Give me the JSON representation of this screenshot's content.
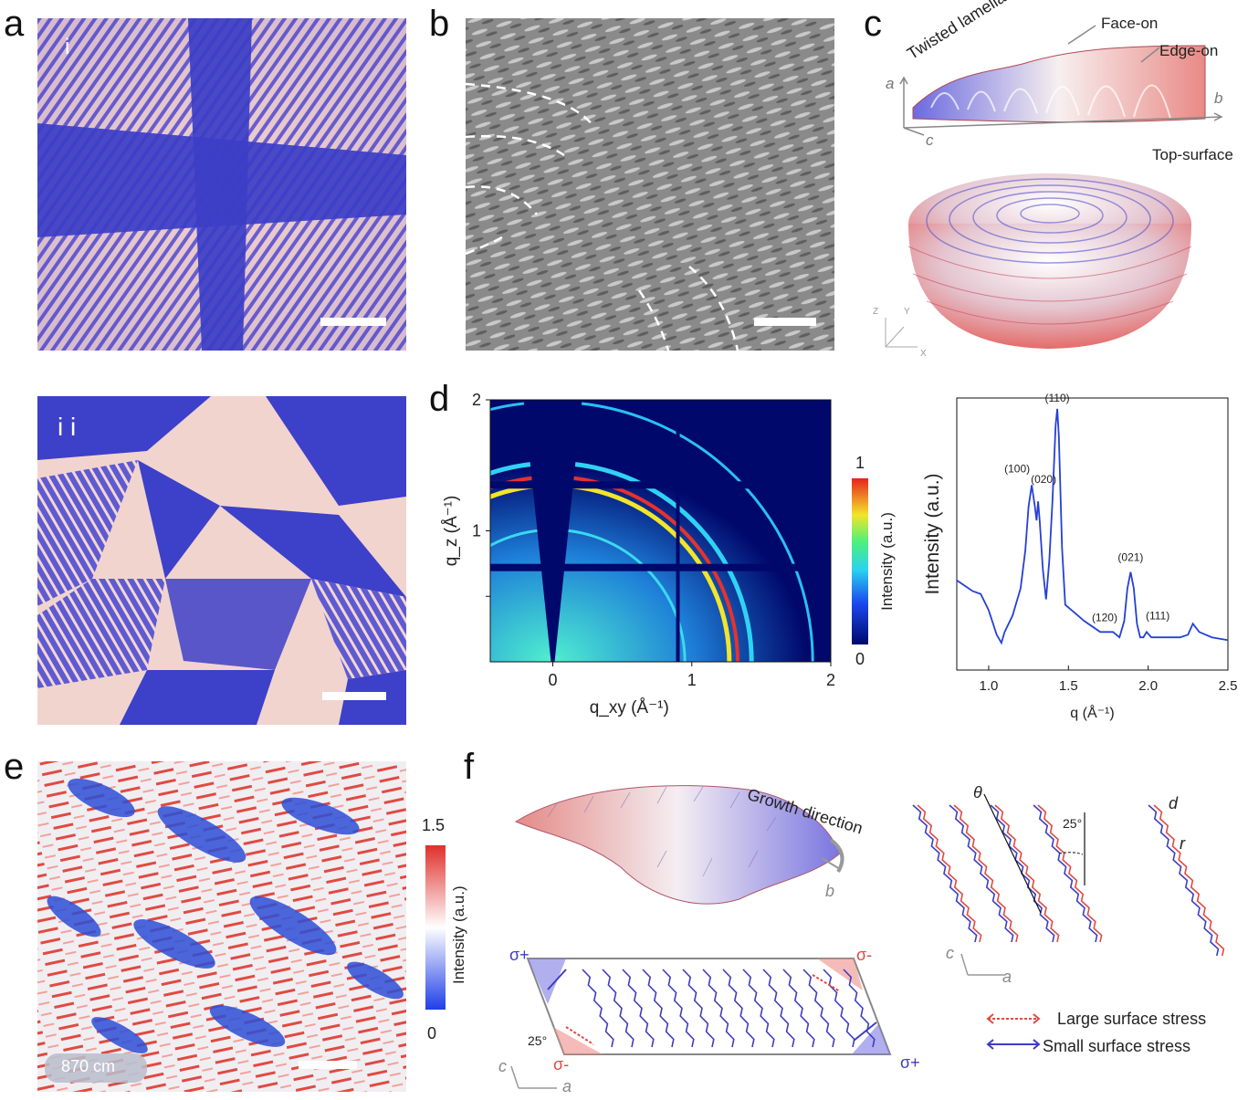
{
  "panels": {
    "a": {
      "letter": "a",
      "sub_i": "i",
      "sub_ii": "i i"
    },
    "b": {
      "letter": "b"
    },
    "c": {
      "letter": "c",
      "twisted": "Twisted lamella",
      "face_on": "Face-on",
      "edge_on": "Edge-on",
      "top_surface": "Top-surface",
      "axis_a": "a",
      "axis_b": "b",
      "axis_c": "c",
      "axis_z": "Z",
      "axis_y": "Y",
      "axis_x": "X"
    },
    "d": {
      "letter": "d"
    },
    "e": {
      "letter": "e",
      "spectral_label": "870 cm"
    },
    "f": {
      "letter": "f",
      "growth": "Growth direction",
      "axis_b": "b",
      "theta": "θ",
      "angle": "25°",
      "d": "d",
      "r": "r",
      "axis_c": "c",
      "axis_a": "a",
      "sigma_plus": "σ+",
      "sigma_minus": "σ-",
      "legend_large": "Large surface stress",
      "legend_small": "Small surface stress"
    }
  },
  "colors": {
    "blue": "#3b3fc8",
    "pink": "#f3c7c4",
    "red": "#e8413a",
    "navy": "#00086b"
  },
  "chart_data": [
    {
      "type": "heatmap",
      "title": "",
      "xlabel": "q_xy (Å⁻¹)",
      "ylabel": "q_z (Å⁻¹)",
      "xlim": [
        -0.45,
        2.0
      ],
      "ylim": [
        0,
        2.0
      ],
      "xticks": [
        "0",
        "1",
        "2"
      ],
      "yticks": [
        "1",
        "2"
      ],
      "colorbar": {
        "label": "Intensity (a.u.)",
        "min": "0",
        "max": "1"
      },
      "rings_q": [
        0.95,
        1.27,
        1.33,
        1.43,
        1.87
      ]
    },
    {
      "type": "line",
      "xlabel": "q (Å⁻¹)",
      "ylabel": "Intensity (a.u.)",
      "xlim": [
        0.8,
        2.5
      ],
      "ylim": [
        0,
        1.0
      ],
      "xticks": [
        "1.0",
        "1.5",
        "2.0",
        "2.5"
      ],
      "x": [
        0.8,
        0.85,
        0.9,
        0.95,
        1.0,
        1.05,
        1.08,
        1.1,
        1.15,
        1.2,
        1.23,
        1.25,
        1.27,
        1.29,
        1.3,
        1.31,
        1.32,
        1.34,
        1.36,
        1.38,
        1.4,
        1.42,
        1.43,
        1.44,
        1.46,
        1.48,
        1.52,
        1.6,
        1.7,
        1.78,
        1.82,
        1.85,
        1.87,
        1.89,
        1.91,
        1.93,
        1.95,
        1.97,
        1.99,
        2.02,
        2.1,
        2.2,
        2.25,
        2.28,
        2.32,
        2.4,
        2.5
      ],
      "y": [
        0.33,
        0.31,
        0.29,
        0.28,
        0.22,
        0.13,
        0.1,
        0.14,
        0.2,
        0.3,
        0.44,
        0.6,
        0.68,
        0.6,
        0.55,
        0.62,
        0.55,
        0.37,
        0.26,
        0.4,
        0.62,
        0.9,
        0.96,
        0.86,
        0.45,
        0.24,
        0.22,
        0.18,
        0.14,
        0.14,
        0.12,
        0.18,
        0.3,
        0.36,
        0.3,
        0.17,
        0.12,
        0.12,
        0.14,
        0.12,
        0.12,
        0.12,
        0.13,
        0.17,
        0.14,
        0.12,
        0.11
      ],
      "peaks": [
        {
          "label": "(100)",
          "x": 1.27,
          "y": 0.68
        },
        {
          "label": "(020)",
          "x": 1.31,
          "y": 0.62
        },
        {
          "label": "(110)",
          "x": 1.43,
          "y": 0.96
        },
        {
          "label": "(120)",
          "x": 1.83,
          "y": 0.16
        },
        {
          "label": "(021)",
          "x": 1.89,
          "y": 0.36
        },
        {
          "label": "(111)",
          "x": 1.98,
          "y": 0.16
        }
      ]
    },
    {
      "type": "heatmap",
      "colorbar": {
        "label": "Intensity (a.u.)",
        "min": "0",
        "max": "1.5"
      }
    }
  ]
}
